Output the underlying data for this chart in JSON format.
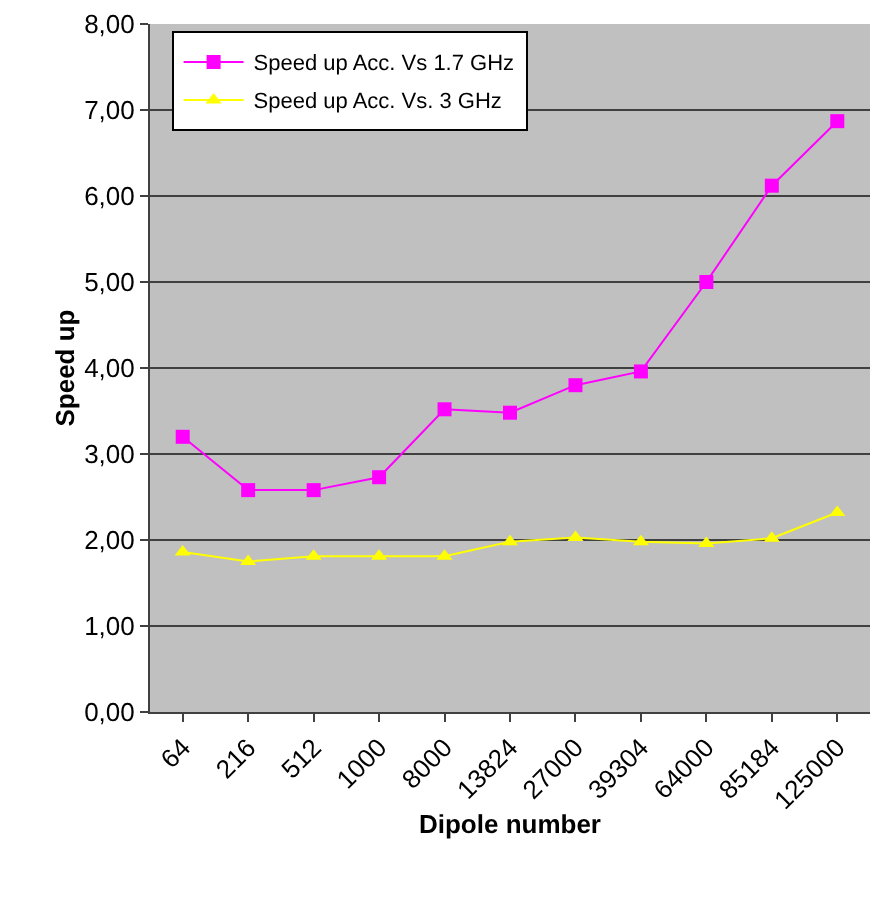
{
  "chart_data": {
    "type": "line",
    "xlabel": "Dipole number",
    "ylabel": "Speed up",
    "categories": [
      "64",
      "216",
      "512",
      "1000",
      "8000",
      "13824",
      "27000",
      "39304",
      "64000",
      "85184",
      "125000"
    ],
    "series": [
      {
        "name": "Speed up Acc. Vs 1.7 GHz",
        "color": "#ff00ff",
        "marker": "square",
        "values": [
          3.2,
          2.58,
          2.58,
          2.73,
          3.52,
          3.48,
          3.8,
          3.96,
          5.0,
          6.12,
          6.87
        ]
      },
      {
        "name": "Speed up Acc. Vs. 3 GHz",
        "color": "#ffff00",
        "marker": "triangle",
        "values": [
          1.86,
          1.75,
          1.81,
          1.81,
          1.81,
          1.98,
          2.03,
          1.98,
          1.96,
          2.02,
          2.32
        ]
      }
    ],
    "ylim": [
      0,
      8
    ],
    "yticks": [
      {
        "value": 0,
        "label": "0,00"
      },
      {
        "value": 1,
        "label": "1,00"
      },
      {
        "value": 2,
        "label": "2,00"
      },
      {
        "value": 3,
        "label": "3,00"
      },
      {
        "value": 4,
        "label": "4,00"
      },
      {
        "value": 5,
        "label": "5,00"
      },
      {
        "value": 6,
        "label": "6,00"
      },
      {
        "value": 7,
        "label": "7,00"
      },
      {
        "value": 8,
        "label": "8,00"
      }
    ],
    "grid": "y",
    "legend": "top left",
    "line_style": "solid"
  }
}
